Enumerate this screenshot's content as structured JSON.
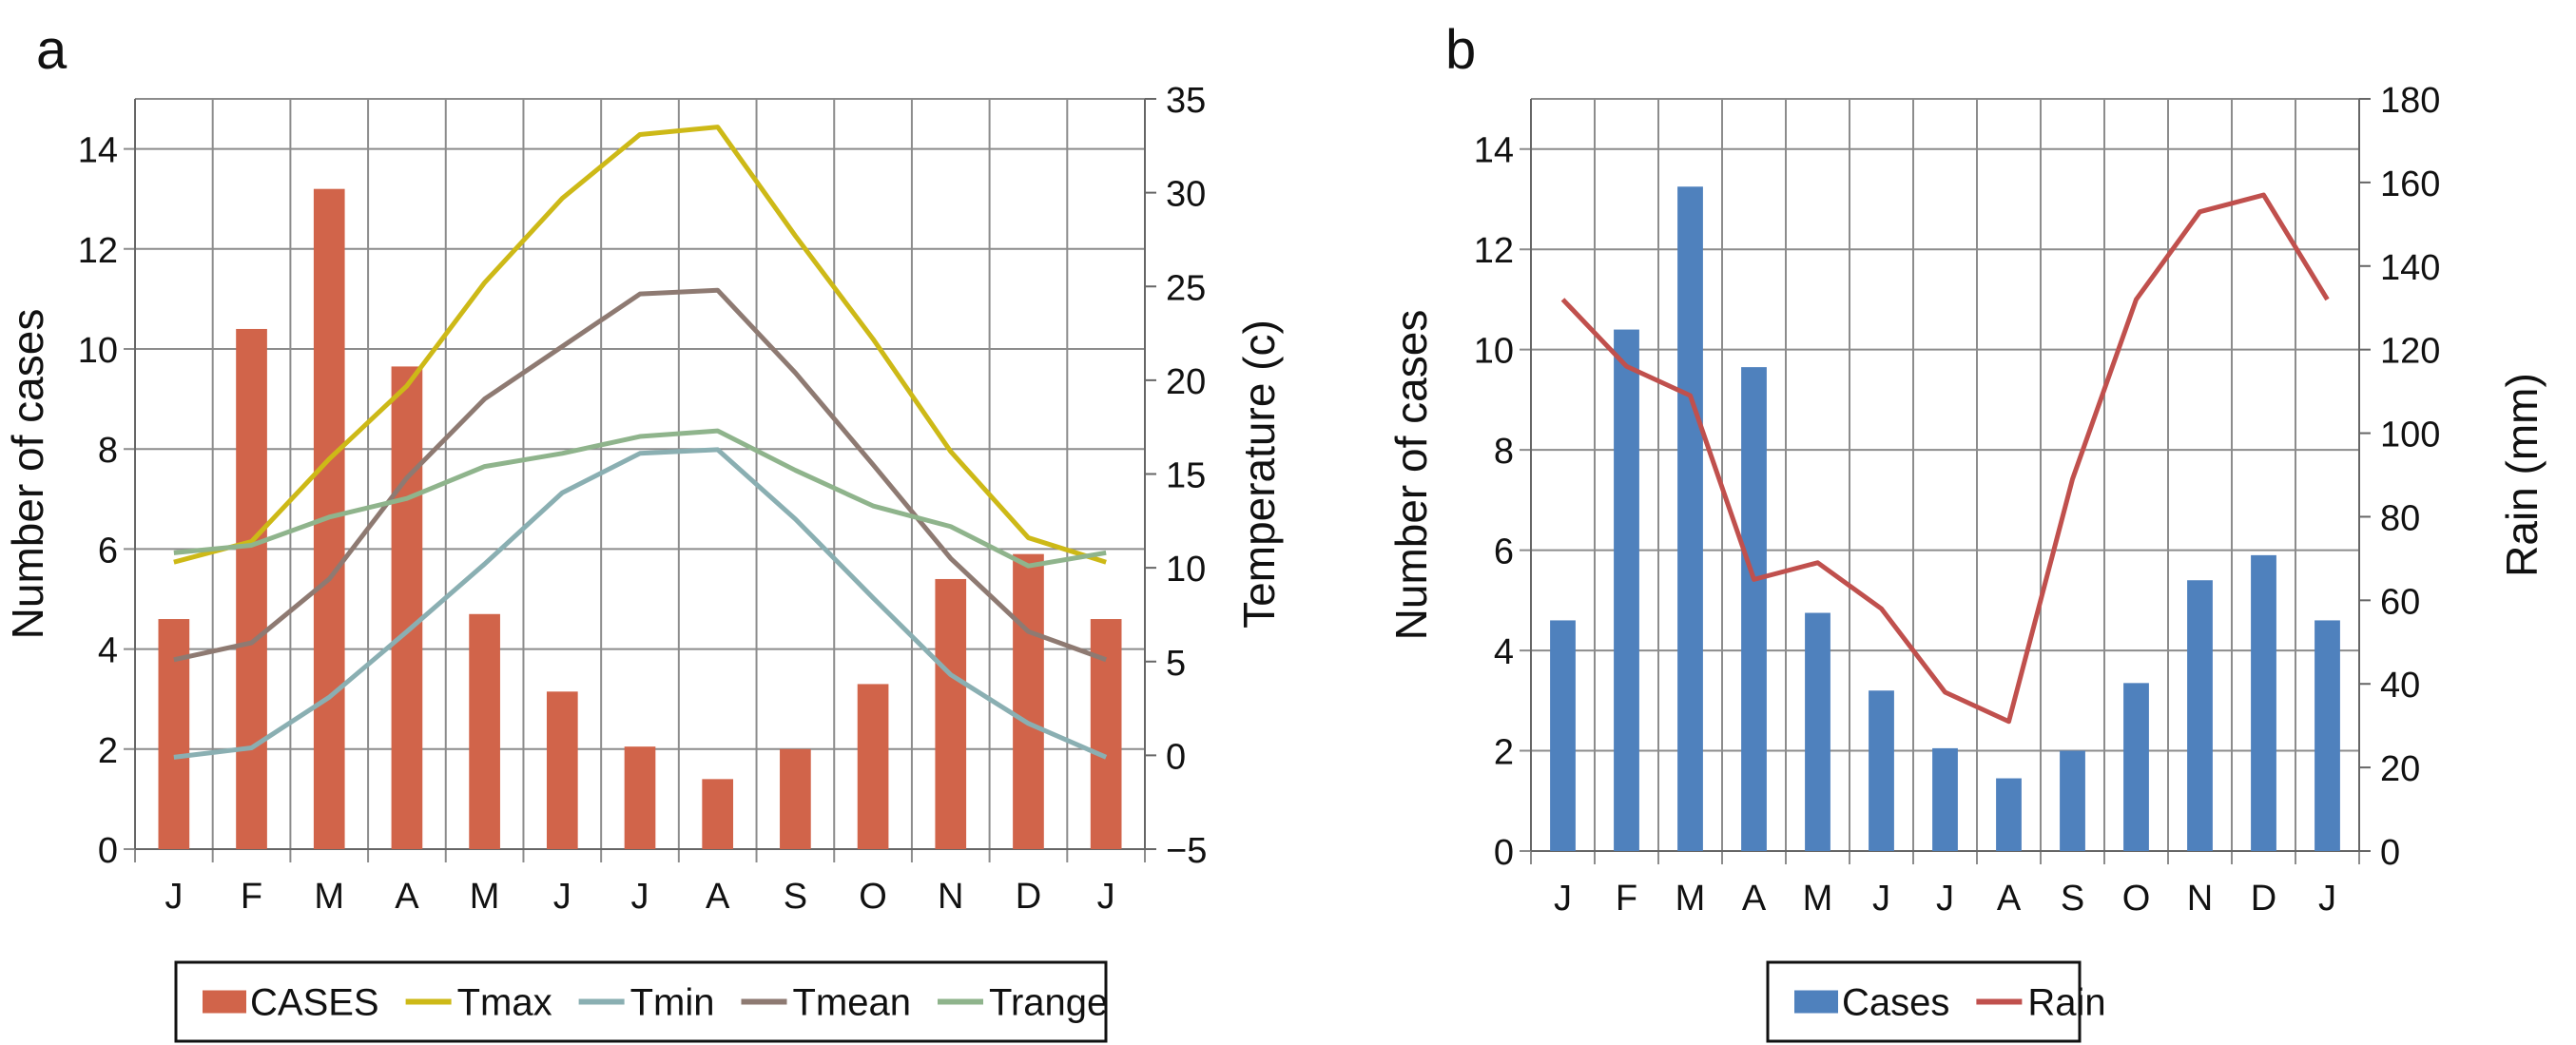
{
  "chart_data": [
    {
      "panel_label": "a",
      "type": "bar+line",
      "categories": [
        "J",
        "F",
        "M",
        "A",
        "M",
        "J",
        "J",
        "A",
        "S",
        "O",
        "N",
        "D",
        "J"
      ],
      "ylabel": "Number of cases",
      "y2label": "Temperature (c)",
      "ylim": [
        0,
        15
      ],
      "yticks": [
        0,
        2,
        4,
        6,
        8,
        10,
        12,
        14
      ],
      "y2lim": [
        -5,
        35
      ],
      "y2ticks": [
        -5,
        0,
        5,
        10,
        15,
        20,
        25,
        30,
        35
      ],
      "grid": true,
      "legend_position": "bottom",
      "series": [
        {
          "name": "CASES",
          "type": "bar",
          "axis": "left",
          "color": "#D1644A",
          "values": [
            4.6,
            10.4,
            13.2,
            9.65,
            4.7,
            3.15,
            2.05,
            1.4,
            2.0,
            3.3,
            5.4,
            5.9,
            4.6
          ]
        },
        {
          "name": "Tmax",
          "type": "line",
          "axis": "right",
          "color": "#CDB917",
          "values": [
            10.3,
            11.4,
            15.8,
            19.7,
            25.2,
            29.7,
            33.1,
            33.5,
            27.7,
            22.2,
            16.2,
            11.6,
            10.3
          ]
        },
        {
          "name": "Tmin",
          "type": "line",
          "axis": "right",
          "color": "#8AAFB2",
          "values": [
            -0.1,
            0.4,
            3.1,
            6.6,
            10.2,
            14.0,
            16.1,
            16.3,
            12.6,
            8.4,
            4.3,
            1.7,
            -0.1
          ]
        },
        {
          "name": "Tmean",
          "type": "line",
          "axis": "right",
          "color": "#8E7A72",
          "values": [
            5.1,
            6.0,
            9.4,
            14.8,
            19.0,
            21.8,
            24.6,
            24.8,
            20.4,
            15.5,
            10.5,
            6.6,
            5.1
          ]
        },
        {
          "name": "Trange",
          "type": "line",
          "axis": "right",
          "color": "#8FB48C",
          "values": [
            10.8,
            11.2,
            12.7,
            13.7,
            15.4,
            16.1,
            17.0,
            17.3,
            15.2,
            13.3,
            12.2,
            10.1,
            10.8
          ]
        }
      ]
    },
    {
      "panel_label": "b",
      "type": "bar+line",
      "categories": [
        "J",
        "F",
        "M",
        "A",
        "M",
        "J",
        "J",
        "A",
        "S",
        "O",
        "N",
        "D",
        "J"
      ],
      "ylabel": "Number of cases",
      "y2label": "Rain (mm)",
      "ylim": [
        0,
        15
      ],
      "yticks": [
        0,
        2,
        4,
        6,
        8,
        10,
        12,
        14
      ],
      "y2lim": [
        0,
        180
      ],
      "y2ticks": [
        0,
        20,
        40,
        60,
        80,
        100,
        120,
        140,
        160,
        180
      ],
      "grid": true,
      "legend_position": "bottom",
      "series": [
        {
          "name": "Cases",
          "type": "bar",
          "axis": "left",
          "color": "#4F81BD",
          "values": [
            4.6,
            10.4,
            13.25,
            9.65,
            4.75,
            3.2,
            2.05,
            1.45,
            2.0,
            3.35,
            5.4,
            5.9,
            4.6
          ]
        },
        {
          "name": "Rain",
          "type": "line",
          "axis": "right",
          "color": "#C0504D",
          "values": [
            132,
            116,
            109,
            65,
            69,
            58,
            38,
            31,
            89,
            132,
            153,
            157,
            132
          ]
        }
      ]
    }
  ]
}
